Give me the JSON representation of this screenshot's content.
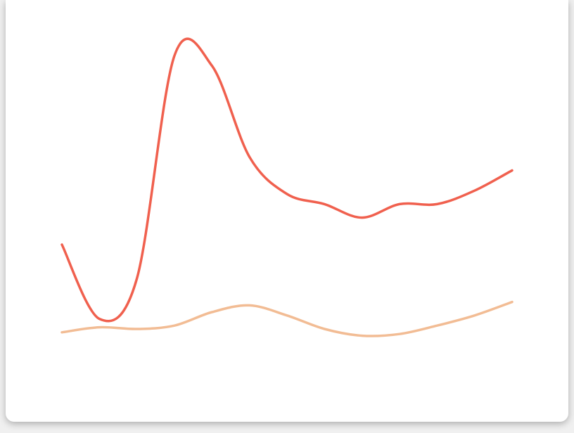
{
  "chart_data": {
    "type": "line",
    "title": "",
    "xlabel": "",
    "ylabel": "",
    "grid": false,
    "legend": "none",
    "curve": "smooth",
    "x": [
      0,
      1,
      2,
      3,
      4,
      5,
      6,
      7,
      8,
      9,
      10,
      11,
      12
    ],
    "ylim": [
      0,
      100
    ],
    "series": [
      {
        "color": "#f0604e",
        "values": [
          40,
          18,
          30,
          96,
          93,
          66,
          55,
          52,
          48,
          52,
          52,
          56,
          62
        ]
      },
      {
        "color": "#f2bc94",
        "values": [
          14,
          15.5,
          15,
          16,
          20,
          22,
          19,
          15,
          13,
          13.5,
          16,
          19,
          23
        ]
      }
    ]
  }
}
